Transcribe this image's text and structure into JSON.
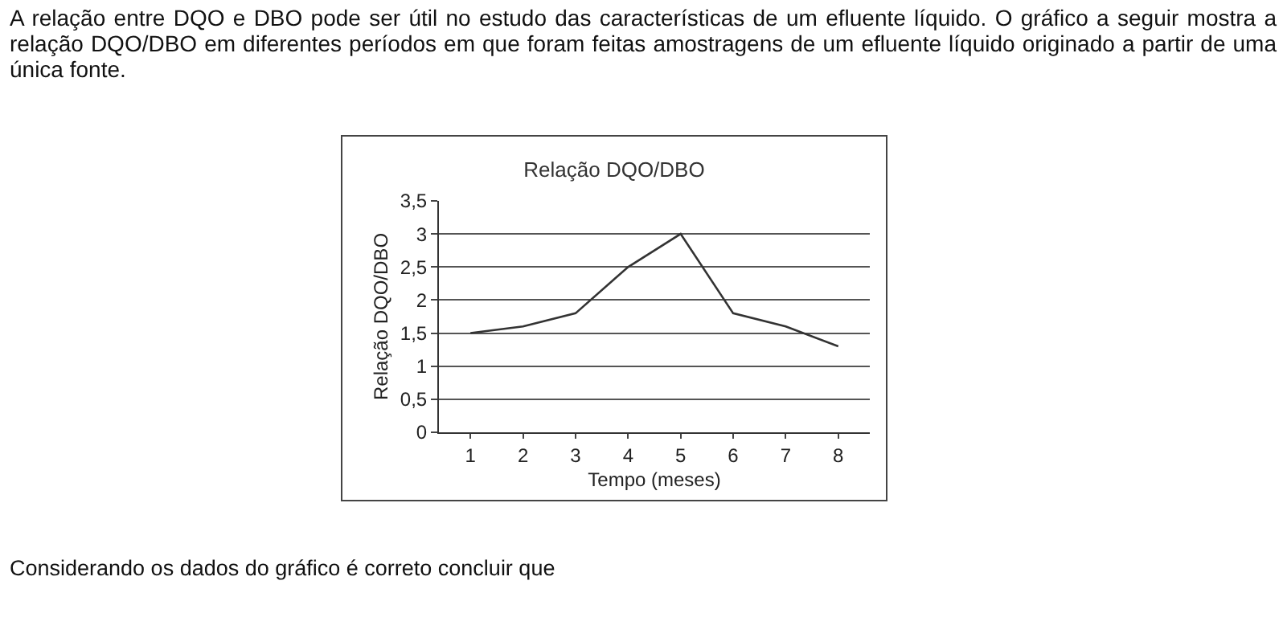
{
  "chart_data": {
    "type": "line",
    "title": "Relação DQO/DBO",
    "xlabel": "Tempo (meses)",
    "ylabel": "Relação DQO/DBO",
    "categories": [
      "1",
      "2",
      "3",
      "4",
      "5",
      "6",
      "7",
      "8"
    ],
    "series": [
      {
        "color": "#333333",
        "values": [
          1.5,
          1.6,
          1.8,
          2.5,
          3.0,
          1.8,
          1.6,
          1.3
        ]
      }
    ],
    "ylim": [
      0,
      3.5
    ],
    "yticks": [
      0,
      {
        "value": 0.5,
        "label": "0,5"
      },
      1,
      {
        "value": 1.5,
        "label": "1,5"
      },
      2,
      {
        "value": 2.5,
        "label": "2,5"
      },
      3,
      {
        "value": 3.5,
        "label": "3,5"
      }
    ],
    "grid": "y",
    "marker": "none",
    "line_style": "solid",
    "annotations": [
      "A relação entre DQO e DBO pode ser útil no estudo das características de um efluente líquido. O gráfico a seguir mostra a relação DQO/DBO em diferentes períodos em que foram feitas amostragens de um efluente líquido originado a partir de uma única fonte.",
      "Considerando os dados do gráfico é correto concluir que"
    ]
  }
}
